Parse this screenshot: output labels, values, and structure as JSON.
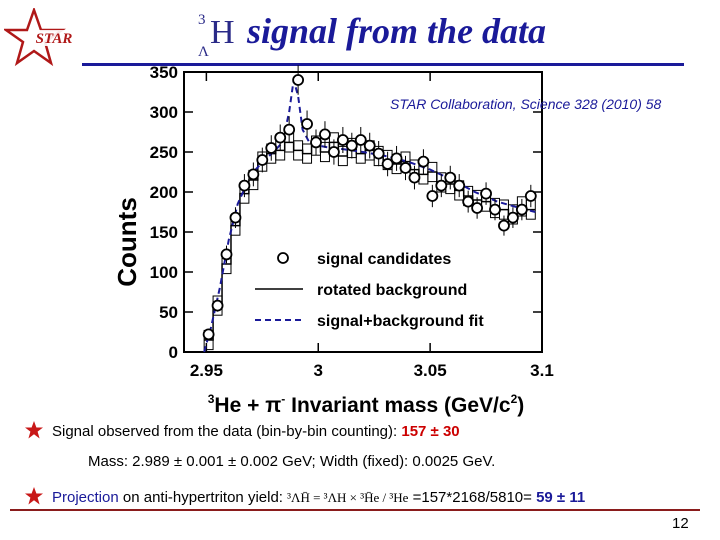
{
  "logo": {
    "text": "STAR"
  },
  "title": {
    "nucleus_mass_number": "3",
    "nucleus_hyperon": "Λ",
    "nucleus_symbol": "H",
    "text": "signal from the data"
  },
  "reference": "STAR Collaboration, Science 328 (2010) 58",
  "bullets": {
    "b1_text": "Signal observed from the data (bin-by-bin counting): ",
    "b1_value": "157 ± 30",
    "b2_text": "Mass: 2.989 ± 0.001 ± 0.002 GeV; Width (fixed): 0.0025 GeV.",
    "b3_projection": "Projection",
    "b3_text": " on anti-hypertriton yield: ",
    "b3_formula": "³ΛH̄ = ³ΛH × ³H̄e / ³He",
    "b3_calc": " =157*2168/5810= ",
    "b3_value": "59 ± 11"
  },
  "page_number": "12",
  "chart_data": {
    "type": "scatter",
    "xlabel_main": "He + π",
    "xlabel_mass_number": "3",
    "xlabel_charge": "-",
    "xlabel_rest": " Invariant mass (GeV/c",
    "xlabel_power": "2",
    "xlabel_close": ")",
    "ylabel": "Counts",
    "xlim": [
      2.94,
      3.1
    ],
    "ylim": [
      0,
      350
    ],
    "xticks": [
      2.95,
      3,
      3.05,
      3.1
    ],
    "xtick_labels": [
      "2.95",
      "3",
      "3.05",
      "3.1"
    ],
    "yticks": [
      0,
      50,
      100,
      150,
      200,
      250,
      300,
      350
    ],
    "ytick_labels": [
      "0",
      "50",
      "100",
      "150",
      "200",
      "250",
      "300",
      "350"
    ],
    "legend": {
      "placement": "lower-right",
      "entries": [
        "signal candidates",
        "rotated background",
        "signal+background fit"
      ]
    },
    "series": [
      {
        "name": "signal candidates",
        "style": "open-circle",
        "color": "#000000",
        "x": [
          2.951,
          2.955,
          2.959,
          2.963,
          2.967,
          2.971,
          2.975,
          2.979,
          2.983,
          2.987,
          2.991,
          2.995,
          2.999,
          3.003,
          3.007,
          3.011,
          3.015,
          3.019,
          3.023,
          3.027,
          3.031,
          3.035,
          3.039,
          3.043,
          3.047,
          3.051,
          3.055,
          3.059,
          3.063,
          3.067,
          3.071,
          3.075,
          3.079,
          3.083,
          3.087,
          3.091,
          3.095
        ],
        "y": [
          22,
          58,
          122,
          168,
          208,
          222,
          240,
          255,
          268,
          278,
          340,
          285,
          262,
          272,
          250,
          265,
          258,
          265,
          258,
          248,
          235,
          242,
          230,
          218,
          238,
          195,
          208,
          218,
          208,
          188,
          180,
          198,
          178,
          158,
          168,
          178,
          195
        ]
      },
      {
        "name": "rotated background",
        "style": "histogram",
        "color": "#000000",
        "x": [
          2.951,
          2.955,
          2.959,
          2.963,
          2.967,
          2.971,
          2.975,
          2.979,
          2.983,
          2.987,
          2.991,
          2.995,
          2.999,
          3.003,
          3.007,
          3.011,
          3.015,
          3.019,
          3.023,
          3.027,
          3.031,
          3.035,
          3.039,
          3.043,
          3.047,
          3.051,
          3.055,
          3.059,
          3.063,
          3.067,
          3.071,
          3.075,
          3.079,
          3.083,
          3.087,
          3.091,
          3.095
        ],
        "y": [
          15,
          58,
          110,
          158,
          198,
          215,
          238,
          248,
          252,
          262,
          252,
          248,
          258,
          250,
          262,
          245,
          255,
          248,
          252,
          245,
          240,
          235,
          238,
          228,
          222,
          225,
          212,
          210,
          202,
          195,
          190,
          188,
          180,
          178,
          172,
          182,
          178
        ]
      },
      {
        "name": "signal+background fit",
        "style": "dashed",
        "color": "#1a1a99",
        "x": [
          2.949,
          2.952,
          2.956,
          2.96,
          2.964,
          2.968,
          2.972,
          2.976,
          2.98,
          2.984,
          2.987,
          2.989,
          2.991,
          2.993,
          2.996,
          3.0,
          3.004,
          3.01,
          3.02,
          3.03,
          3.04,
          3.05,
          3.06,
          3.07,
          3.08,
          3.09,
          3.097
        ],
        "y": [
          0,
          30,
          80,
          140,
          185,
          210,
          228,
          240,
          250,
          262,
          300,
          340,
          320,
          278,
          262,
          258,
          256,
          254,
          250,
          245,
          238,
          228,
          215,
          200,
          188,
          180,
          175
        ]
      }
    ]
  }
}
